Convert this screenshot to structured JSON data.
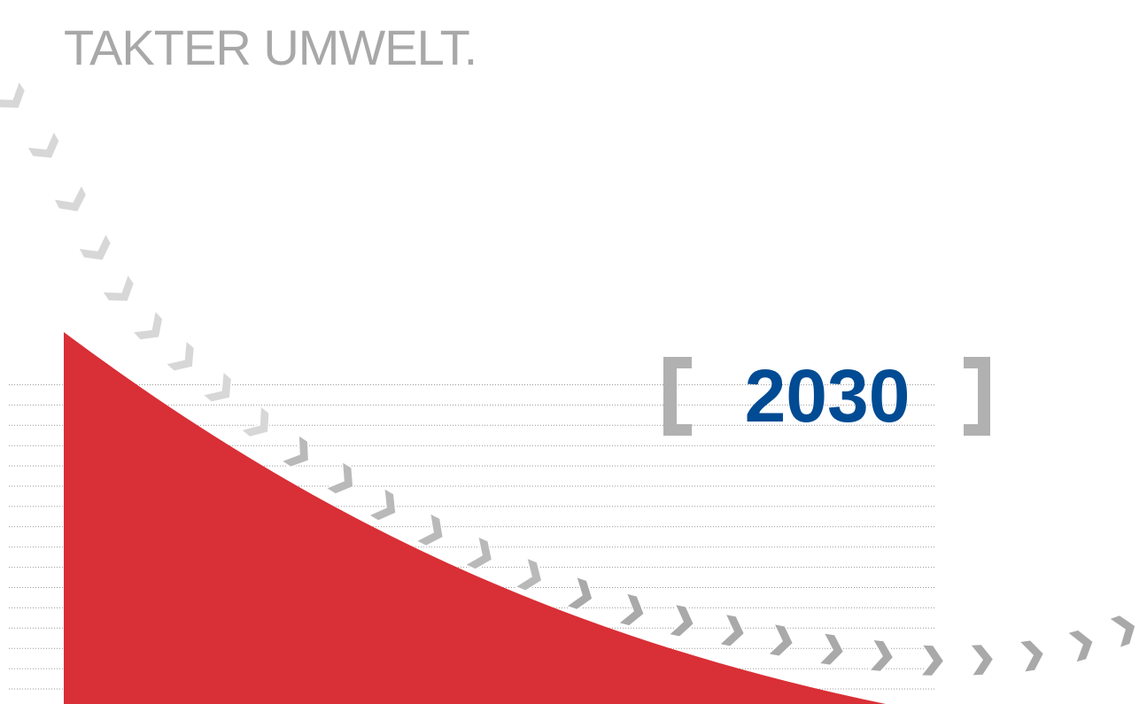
{
  "headline": "TAKTER UMWELT.",
  "year": "2030",
  "colors": {
    "headline": "#a8a8a8",
    "curve_fill": "#d92f36",
    "year_text": "#004b93",
    "brackets": "#b1b1b1",
    "arrows_faint": "#d7d7d7",
    "arrows_mid": "#b9b9b9",
    "arrows_dark": "#a9a9a9",
    "gridlines": "#9a9a9a"
  },
  "icons": {
    "arrow": "chevron-right-icon",
    "bracket_left": "left-bracket-icon",
    "bracket_right": "right-bracket-icon"
  }
}
